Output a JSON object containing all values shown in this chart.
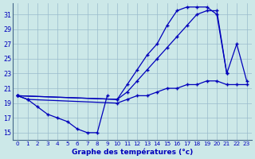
{
  "title": "Graphe des températures (°c)",
  "bg_color": "#cce8e8",
  "grid_color": "#99bbcc",
  "line_color": "#0000bb",
  "marker": "+",
  "y_ticks": [
    15,
    17,
    19,
    21,
    23,
    25,
    27,
    29,
    31
  ],
  "ylim": [
    14.0,
    32.5
  ],
  "xlim": [
    -0.5,
    23.5
  ],
  "series1_x": [
    0,
    1,
    2,
    3,
    4,
    5,
    6,
    7,
    8,
    9
  ],
  "series1_y": [
    20.0,
    19.5,
    18.5,
    17.5,
    17.0,
    16.5,
    15.5,
    15.0,
    15.0,
    20.0
  ],
  "series2_x": [
    0,
    10,
    11,
    12,
    13,
    14,
    15,
    16,
    17,
    18,
    19,
    20,
    21,
    22,
    23
  ],
  "series2_y": [
    20.0,
    19.5,
    21.5,
    23.5,
    25.5,
    27.0,
    29.5,
    31.5,
    32.0,
    32.0,
    32.0,
    31.0,
    23.0,
    27.0,
    22.0
  ],
  "series3_x": [
    0,
    10,
    11,
    12,
    13,
    14,
    15,
    16,
    17,
    18,
    19,
    20,
    21
  ],
  "series3_y": [
    20.0,
    19.5,
    20.5,
    22.0,
    23.5,
    25.0,
    26.5,
    28.0,
    29.5,
    31.0,
    31.5,
    31.5,
    23.0
  ],
  "series4_x": [
    0,
    1,
    10,
    11,
    12,
    13,
    14,
    15,
    16,
    17,
    18,
    19,
    20,
    21,
    22,
    23
  ],
  "series4_y": [
    20.0,
    19.5,
    19.0,
    19.5,
    20.0,
    20.0,
    20.5,
    21.0,
    21.0,
    21.5,
    21.5,
    22.0,
    22.0,
    21.5,
    21.5,
    21.5
  ]
}
